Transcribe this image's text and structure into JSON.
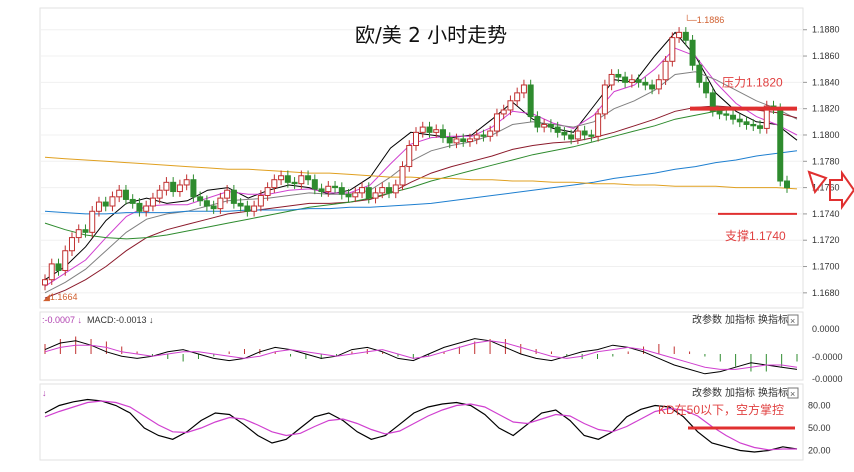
{
  "chart_data": [
    {
      "type": "candlestick",
      "title": "欧/美 2 小时走势",
      "price_axis": {
        "ticks": [
          "1.1880",
          "1.1860",
          "1.1840",
          "1.1820",
          "1.1800",
          "1.1780",
          "1.1760",
          "1.1740",
          "1.1720",
          "1.1700",
          "1.1680"
        ],
        "ylim": [
          1.167,
          1.1895
        ]
      },
      "high_label": "1.1886",
      "low_label": "1.1664",
      "annotations": {
        "resistance": "压力1.1820",
        "support": "支撑1.1740",
        "resistance_value": 1.182,
        "support_value": 1.174
      },
      "candles_close": [
        1.169,
        1.1702,
        1.1697,
        1.1712,
        1.1722,
        1.1728,
        1.1726,
        1.1742,
        1.1749,
        1.1746,
        1.1753,
        1.1758,
        1.1751,
        1.1748,
        1.1742,
        1.1746,
        1.1752,
        1.1758,
        1.1764,
        1.1757,
        1.1762,
        1.1766,
        1.1753,
        1.175,
        1.1746,
        1.1744,
        1.1752,
        1.1758,
        1.1748,
        1.1746,
        1.1742,
        1.1746,
        1.1754,
        1.176,
        1.1766,
        1.1769,
        1.1764,
        1.1763,
        1.1769,
        1.1766,
        1.1759,
        1.1757,
        1.1761,
        1.176,
        1.1755,
        1.1753,
        1.1756,
        1.176,
        1.1752,
        1.1756,
        1.176,
        1.1756,
        1.1762,
        1.1776,
        1.1792,
        1.1802,
        1.1806,
        1.1802,
        1.1804,
        1.1798,
        1.1794,
        1.1797,
        1.1795,
        1.1797,
        1.18,
        1.1799,
        1.1803,
        1.1816,
        1.1819,
        1.1826,
        1.1832,
        1.1838,
        1.1814,
        1.1806,
        1.1808,
        1.1806,
        1.1802,
        1.18,
        1.1797,
        1.1803,
        1.18,
        1.1799,
        1.1816,
        1.1838,
        1.1846,
        1.1844,
        1.184,
        1.1842,
        1.184,
        1.1838,
        1.1835,
        1.1842,
        1.1856,
        1.1874,
        1.1878,
        1.1872,
        1.1853,
        1.184,
        1.1832,
        1.1818,
        1.1816,
        1.1815,
        1.1812,
        1.181,
        1.1808,
        1.1807,
        1.1805,
        1.1822,
        1.182,
        1.1765,
        1.176
      ],
      "moving_averages": [
        {
          "color": "#000000",
          "values": [
            1.169,
            1.17,
            1.1715,
            1.1735,
            1.1748,
            1.1752,
            1.1748,
            1.175,
            1.1758,
            1.176,
            1.1752,
            1.1758,
            1.1762,
            1.176,
            1.1755,
            1.1758,
            1.1768,
            1.179,
            1.1802,
            1.18,
            1.1798,
            1.18,
            1.1812,
            1.1825,
            1.1812,
            1.1805,
            1.1802,
            1.1822,
            1.1842,
            1.184,
            1.186,
            1.1878,
            1.186,
            1.1832,
            1.1818,
            1.181,
            1.1808,
            1.1796
          ]
        },
        {
          "color": "#d040d0",
          "values": [
            1.1685,
            1.1695,
            1.1705,
            1.1722,
            1.1738,
            1.1746,
            1.1747,
            1.1747,
            1.1752,
            1.1757,
            1.1755,
            1.1755,
            1.1758,
            1.1759,
            1.1756,
            1.1756,
            1.1762,
            1.1778,
            1.1793,
            1.1798,
            1.1799,
            1.1799,
            1.1806,
            1.1818,
            1.1816,
            1.1809,
            1.1805,
            1.1815,
            1.1833,
            1.1838,
            1.185,
            1.1866,
            1.186,
            1.184,
            1.1824,
            1.1814,
            1.1808,
            1.18
          ]
        },
        {
          "color": "#808080",
          "values": [
            1.168,
            1.1688,
            1.1698,
            1.1712,
            1.1726,
            1.1736,
            1.174,
            1.1742,
            1.1746,
            1.175,
            1.1751,
            1.1752,
            1.1754,
            1.1756,
            1.1755,
            1.1755,
            1.1758,
            1.1768,
            1.178,
            1.1788,
            1.1792,
            1.1795,
            1.18,
            1.1808,
            1.181,
            1.1808,
            1.1806,
            1.181,
            1.182,
            1.1826,
            1.1834,
            1.1846,
            1.1848,
            1.1842,
            1.1834,
            1.1826,
            1.182,
            1.1812
          ]
        },
        {
          "color": "#8b1a2b",
          "values": [
            1.1676,
            1.1682,
            1.169,
            1.17,
            1.1712,
            1.1722,
            1.1728,
            1.1732,
            1.1736,
            1.174,
            1.1742,
            1.1744,
            1.1746,
            1.1748,
            1.1748,
            1.1749,
            1.1751,
            1.1756,
            1.1764,
            1.1771,
            1.1776,
            1.178,
            1.1784,
            1.1789,
            1.1792,
            1.1794,
            1.1795,
            1.1798,
            1.1802,
            1.1807,
            1.1812,
            1.1818,
            1.1821,
            1.1822,
            1.1821,
            1.1819,
            1.1817,
            1.1813
          ]
        },
        {
          "color": "#2e8b2e",
          "values": [
            1.1733,
            1.1728,
            1.1724,
            1.1722,
            1.1721,
            1.1722,
            1.1724,
            1.1727,
            1.173,
            1.1733,
            1.1736,
            1.1739,
            1.1742,
            1.1745,
            1.1747,
            1.1749,
            1.1752,
            1.1756,
            1.176,
            1.1765,
            1.1769,
            1.1773,
            1.1777,
            1.1781,
            1.1785,
            1.1788,
            1.1791,
            1.1795,
            1.1799,
            1.1803,
            1.1807,
            1.1812,
            1.1815,
            1.1818,
            1.182,
            1.1821,
            1.182,
            1.1819
          ]
        },
        {
          "color": "#1e7fd0",
          "values": [
            1.1742,
            1.1741,
            1.174,
            1.174,
            1.1741,
            1.1741,
            1.1741,
            1.1742,
            1.1742,
            1.1742,
            1.1743,
            1.1743,
            1.1743,
            1.1744,
            1.1744,
            1.1745,
            1.1745,
            1.1746,
            1.1747,
            1.1748,
            1.175,
            1.1752,
            1.1754,
            1.1756,
            1.1758,
            1.176,
            1.1762,
            1.1764,
            1.1767,
            1.1769,
            1.1771,
            1.1774,
            1.1776,
            1.1779,
            1.1781,
            1.1784,
            1.1786,
            1.1788
          ]
        },
        {
          "color": "#e0a020",
          "values": [
            1.1783,
            1.1782,
            1.1781,
            1.178,
            1.1779,
            1.1778,
            1.1777,
            1.1776,
            1.1775,
            1.1774,
            1.1774,
            1.1773,
            1.1772,
            1.1771,
            1.1771,
            1.177,
            1.1769,
            1.1768,
            1.1768,
            1.1767,
            1.1767,
            1.1766,
            1.1766,
            1.1765,
            1.1765,
            1.1764,
            1.1764,
            1.1763,
            1.1763,
            1.1762,
            1.1762,
            1.1761,
            1.1761,
            1.1761,
            1.176,
            1.176,
            1.176,
            1.1759
          ]
        }
      ]
    },
    {
      "type": "macd",
      "label_diff": ":-0.0007",
      "label_macd": "MACD:-0.0013",
      "ticks": [
        "0.0000",
        "-0.0000",
        "-0.0000"
      ],
      "histogram": [
        4,
        6,
        7,
        6,
        5,
        3,
        1,
        -1,
        -2,
        -3,
        -2,
        -1,
        1,
        2,
        2,
        1,
        -1,
        -2,
        -2,
        -1,
        1,
        2,
        1,
        -1,
        -2,
        -1,
        1,
        3,
        5,
        6,
        6,
        4,
        2,
        1,
        -1,
        -2,
        -2,
        -1,
        1,
        3,
        4,
        3,
        1,
        -1,
        -3,
        -5,
        -7,
        -7,
        -5,
        -3
      ],
      "diff_line": [
        2,
        5,
        6,
        4,
        1,
        -1,
        -2,
        -1,
        1,
        2,
        0,
        -2,
        -3,
        -2,
        1,
        3,
        2,
        0,
        -2,
        -1,
        2,
        3,
        1,
        -2,
        -3,
        0,
        3,
        5,
        7,
        6,
        3,
        0,
        -2,
        -3,
        -1,
        1,
        2,
        4,
        3,
        1,
        -2,
        -5,
        -7,
        -9,
        -8,
        -6,
        -4,
        -5,
        -6,
        -7
      ],
      "dea_line": [
        1,
        3,
        4,
        4,
        3,
        1,
        0,
        -1,
        0,
        1,
        1,
        0,
        -1,
        -2,
        -1,
        1,
        2,
        1,
        0,
        -1,
        0,
        1,
        2,
        0,
        -2,
        -1,
        1,
        3,
        5,
        6,
        5,
        3,
        1,
        -1,
        -2,
        -1,
        1,
        2,
        3,
        2,
        0,
        -2,
        -4,
        -6,
        -7,
        -7,
        -6,
        -5,
        -5,
        -6
      ]
    },
    {
      "type": "kd",
      "ticks": [
        "80.00",
        "50.00",
        "20.00"
      ],
      "annotation": "KD在50以下，空方掌控",
      "k": [
        70,
        80,
        85,
        88,
        86,
        80,
        70,
        50,
        40,
        35,
        45,
        60,
        70,
        68,
        55,
        40,
        30,
        35,
        50,
        65,
        70,
        60,
        45,
        35,
        40,
        55,
        70,
        78,
        82,
        84,
        80,
        68,
        50,
        40,
        55,
        70,
        74,
        60,
        40,
        35,
        45,
        65,
        75,
        80,
        78,
        65,
        45,
        30,
        25,
        20,
        18,
        20,
        25,
        22
      ],
      "d": [
        65,
        72,
        78,
        84,
        86,
        84,
        78,
        66,
        54,
        45,
        44,
        50,
        58,
        64,
        62,
        54,
        45,
        40,
        43,
        52,
        60,
        62,
        56,
        48,
        42,
        46,
        56,
        66,
        74,
        80,
        82,
        78,
        68,
        58,
        56,
        62,
        68,
        66,
        56,
        48,
        45,
        52,
        62,
        72,
        76,
        74,
        66,
        52,
        40,
        30,
        24,
        21,
        22,
        22
      ]
    }
  ],
  "toolbar": {
    "change_params": "改参数",
    "add_indicator": "加指标",
    "switch_indicator": "换指标",
    "close": "×"
  }
}
